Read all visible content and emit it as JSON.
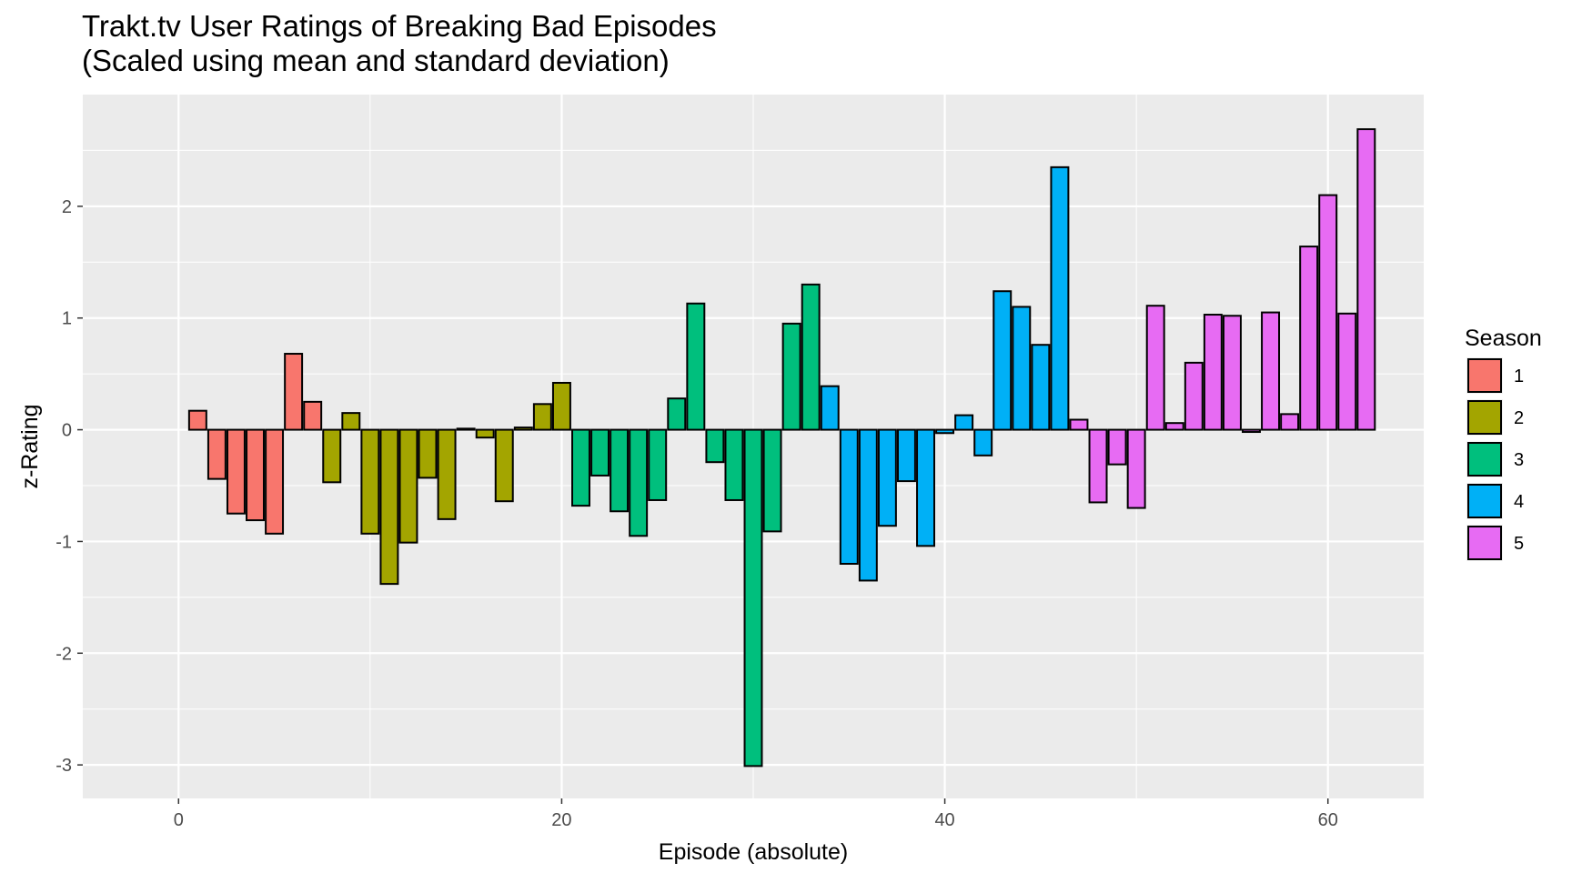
{
  "chart_data": {
    "type": "bar",
    "title": "Trakt.tv User Ratings of Breaking Bad Episodes",
    "subtitle": "(Scaled using mean and standard deviation)",
    "xlabel": "Episode (absolute)",
    "ylabel": "z-Rating",
    "xlim": [
      -5,
      65
    ],
    "ylim": [
      -3.3,
      3.0
    ],
    "xticks": [
      0,
      20,
      40,
      60
    ],
    "yticks": [
      -3,
      -2,
      -1,
      0,
      1,
      2
    ],
    "grid": true,
    "legend": {
      "title": "Season",
      "position": "right",
      "entries": [
        {
          "label": "1",
          "color": "#F8766D"
        },
        {
          "label": "2",
          "color": "#A3A500"
        },
        {
          "label": "3",
          "color": "#00BF7D"
        },
        {
          "label": "4",
          "color": "#00B0F6"
        },
        {
          "label": "5",
          "color": "#E76BF3"
        }
      ]
    },
    "series": [
      {
        "name": "1",
        "x": [
          1,
          2,
          3,
          4,
          5,
          6,
          7
        ],
        "values": [
          0.17,
          -0.44,
          -0.75,
          -0.81,
          -0.93,
          0.68,
          0.25
        ]
      },
      {
        "name": "2",
        "x": [
          8,
          9,
          10,
          11,
          12,
          13,
          14,
          15,
          16,
          17,
          18,
          19,
          20
        ],
        "values": [
          -0.47,
          0.15,
          -0.93,
          -1.38,
          -1.01,
          -0.43,
          -0.8,
          0.01,
          -0.07,
          -0.64,
          0.02,
          0.23,
          0.42
        ]
      },
      {
        "name": "3",
        "x": [
          21,
          22,
          23,
          24,
          25,
          26,
          27,
          28,
          29,
          30,
          31,
          32,
          33
        ],
        "values": [
          -0.68,
          -0.41,
          -0.73,
          -0.95,
          -0.63,
          0.28,
          1.13,
          -0.29,
          -0.63,
          -3.01,
          -0.91,
          0.95,
          1.3
        ]
      },
      {
        "name": "4",
        "x": [
          34,
          35,
          36,
          37,
          38,
          39,
          40,
          41,
          42,
          43,
          44,
          45,
          46
        ],
        "values": [
          0.39,
          -1.2,
          -1.35,
          -0.86,
          -0.46,
          -1.04,
          -0.03,
          0.13,
          -0.23,
          1.24,
          1.1,
          0.76,
          2.35
        ]
      },
      {
        "name": "5",
        "x": [
          47,
          48,
          49,
          50,
          51,
          52,
          53,
          54,
          55,
          56,
          57,
          58,
          59,
          60,
          61,
          62
        ],
        "values": [
          0.09,
          -0.65,
          -0.31,
          -0.7,
          1.11,
          0.06,
          0.6,
          1.03,
          1.02,
          -0.02,
          1.05,
          0.14,
          1.64,
          2.1,
          1.04,
          2.69
        ]
      }
    ]
  }
}
